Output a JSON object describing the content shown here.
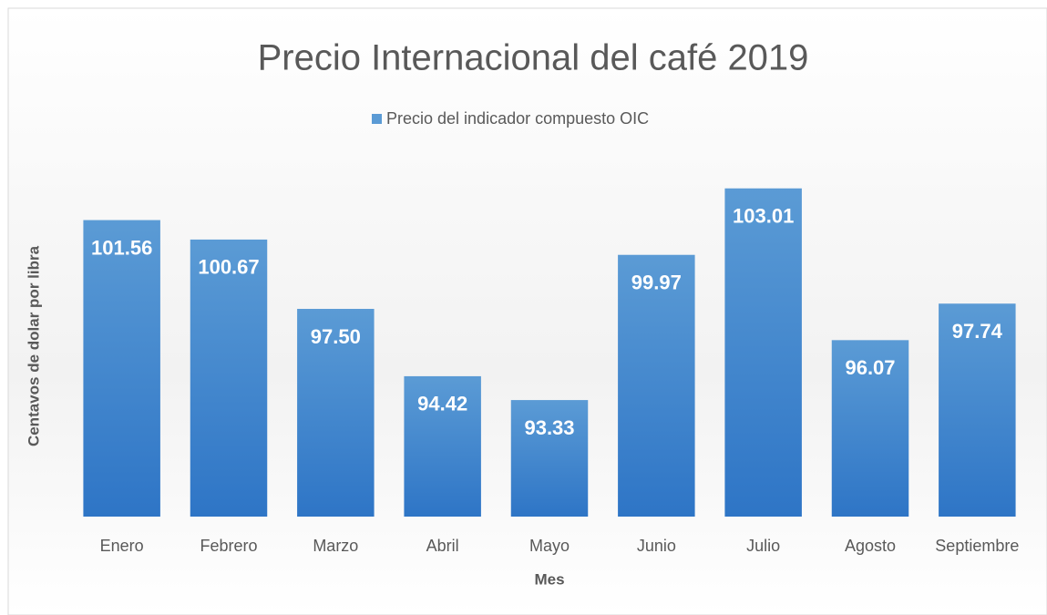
{
  "chart_data": {
    "type": "bar",
    "title": "Precio Internacional del café 2019",
    "series": [
      {
        "name": "Precio del indicador compuesto OIC",
        "color": "#5b9bd5",
        "values": [
          101.56,
          100.67,
          97.5,
          94.42,
          93.33,
          99.97,
          103.01,
          96.07,
          97.74
        ],
        "value_labels": [
          "101.56",
          "100.67",
          "97.50",
          "94.42",
          "93.33",
          "99.97",
          "103.01",
          "96.07",
          "97.74"
        ]
      }
    ],
    "categories": [
      "Enero",
      "Febrero",
      "Marzo",
      "Abril",
      "Mayo",
      "Junio",
      "Julio",
      "Agosto",
      "Septiembre"
    ],
    "x_label": "Mes",
    "y_label": "Centavos de dolar por libra",
    "ylim": [
      88,
      106
    ],
    "legend": "top"
  }
}
